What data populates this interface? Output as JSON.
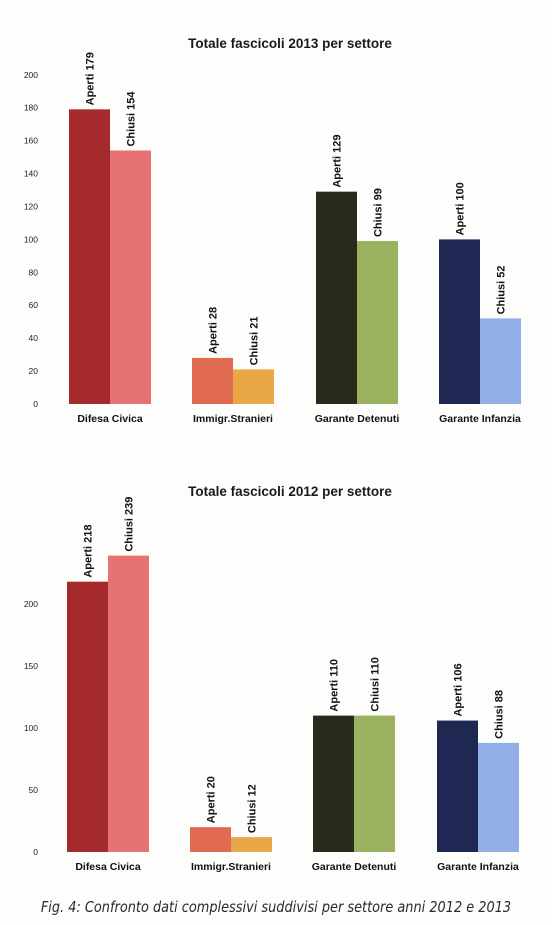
{
  "chart_data": [
    {
      "type": "bar",
      "title": "Totale fascicoli 2013 per settore",
      "categories": [
        "Difesa Civica",
        "Immigr.Stranieri",
        "Garante Detenuti",
        "Garante Infanzia"
      ],
      "series": [
        {
          "name": "Aperti",
          "values": [
            179,
            28,
            129,
            100
          ]
        },
        {
          "name": "Chiusi",
          "values": [
            154,
            21,
            99,
            52
          ]
        }
      ],
      "bar_labels": [
        [
          "Aperti 179",
          "Aperti 28",
          "Aperti 129",
          "Aperti 100"
        ],
        [
          "Chiusi 154",
          "Chiusi 21",
          "Chiusi 99",
          "Chiusi 52"
        ]
      ],
      "bar_colors": [
        [
          "#a42a2c",
          "#e06a52",
          "#2a2a1c",
          "#1e2852"
        ],
        [
          "#e67272",
          "#eaa748",
          "#9bb260",
          "#92aee6"
        ]
      ],
      "ylim": [
        0,
        200
      ],
      "yticks": [
        0,
        20,
        40,
        60,
        80,
        100,
        120,
        140,
        160,
        180,
        200
      ],
      "xlabel": "",
      "ylabel": "",
      "grid": false
    },
    {
      "type": "bar",
      "title": "Totale fascicoli 2012 per settore",
      "categories": [
        "Difesa Civica",
        "Immigr.Stranieri",
        "Garante Detenuti",
        "Garante Infanzia"
      ],
      "series": [
        {
          "name": "Aperti",
          "values": [
            218,
            20,
            110,
            106
          ]
        },
        {
          "name": "Chiusi",
          "values": [
            239,
            12,
            110,
            88
          ]
        }
      ],
      "bar_labels": [
        [
          "Aperti 218",
          "Aperti 20",
          "Aperti 110",
          "Aperti 106"
        ],
        [
          "Chiusi 239",
          "Chiusi 12",
          "Chiusi 110",
          "Chiusi 88"
        ]
      ],
      "bar_colors": [
        [
          "#a42a2c",
          "#e06a52",
          "#2a2a1c",
          "#1e2852"
        ],
        [
          "#e67272",
          "#eaa748",
          "#9bb260",
          "#92aee6"
        ]
      ],
      "ylim": [
        0,
        250
      ],
      "yticks": [
        0,
        50,
        100,
        150,
        200
      ],
      "xlabel": "",
      "ylabel": "",
      "grid": false
    }
  ],
  "caption": "Fig. 4: Confronto dati complessivi suddivisi per settore  anni 2012 e 2013"
}
